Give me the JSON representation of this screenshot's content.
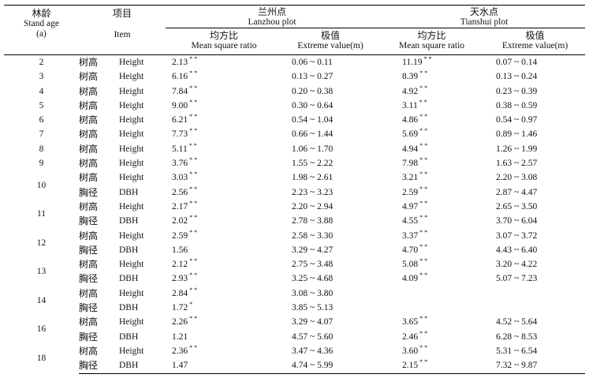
{
  "header": {
    "age_cn": "林龄",
    "age_en": "Stand age",
    "age_unit": "(a)",
    "item_cn": "项目",
    "item_en": "Item",
    "lanzhou_cn": "兰州点",
    "lanzhou_en": "Lanzhou plot",
    "tianshui_cn": "天水点",
    "tianshui_en": "Tianshui plot",
    "ratio_cn": "均方比",
    "ratio_en": "Mean square ratio",
    "extreme_cn": "极值",
    "extreme_en": "Extreme value(m)"
  },
  "groups": [
    {
      "age": "2",
      "rows": [
        {
          "item_cn": "树高",
          "item_en": "Height",
          "lz_ratio": "2.13",
          "lz_sig": "**",
          "lz_ext": "0.06 ~ 0.11",
          "ts_ratio": "11.19",
          "ts_sig": "**",
          "ts_ext": "0.07 ~ 0.14"
        }
      ]
    },
    {
      "age": "3",
      "rows": [
        {
          "item_cn": "树高",
          "item_en": "Height",
          "lz_ratio": "6.16",
          "lz_sig": "**",
          "lz_ext": "0.13 ~ 0.27",
          "ts_ratio": "8.39",
          "ts_sig": "**",
          "ts_ext": "0.13 ~ 0.24"
        }
      ]
    },
    {
      "age": "4",
      "rows": [
        {
          "item_cn": "树高",
          "item_en": "Height",
          "lz_ratio": "7.84",
          "lz_sig": "**",
          "lz_ext": "0.20 ~ 0.38",
          "ts_ratio": "4.92",
          "ts_sig": "**",
          "ts_ext": "0.23 ~ 0.39"
        }
      ]
    },
    {
      "age": "5",
      "rows": [
        {
          "item_cn": "树高",
          "item_en": "Height",
          "lz_ratio": "9.00",
          "lz_sig": "**",
          "lz_ext": "0.30 ~ 0.64",
          "ts_ratio": "3.11",
          "ts_sig": "**",
          "ts_ext": "0.38 ~ 0.59"
        }
      ]
    },
    {
      "age": "6",
      "rows": [
        {
          "item_cn": "树高",
          "item_en": "Height",
          "lz_ratio": "6.21",
          "lz_sig": "**",
          "lz_ext": "0.54 ~ 1.04",
          "ts_ratio": "4.86",
          "ts_sig": "**",
          "ts_ext": "0.54 ~ 0.97"
        }
      ]
    },
    {
      "age": "7",
      "rows": [
        {
          "item_cn": "树高",
          "item_en": "Height",
          "lz_ratio": "7.73",
          "lz_sig": "**",
          "lz_ext": "0.66 ~ 1.44",
          "ts_ratio": "5.69",
          "ts_sig": "**",
          "ts_ext": "0.89 ~ 1.46"
        }
      ]
    },
    {
      "age": "8",
      "rows": [
        {
          "item_cn": "树高",
          "item_en": "Height",
          "lz_ratio": "5.11",
          "lz_sig": "**",
          "lz_ext": "1.06 ~ 1.70",
          "ts_ratio": "4.94",
          "ts_sig": "**",
          "ts_ext": "1.26 ~ 1.99"
        }
      ]
    },
    {
      "age": "9",
      "rows": [
        {
          "item_cn": "树高",
          "item_en": "Height",
          "lz_ratio": "3.76",
          "lz_sig": "**",
          "lz_ext": "1.55 ~ 2.22",
          "ts_ratio": "7.98",
          "ts_sig": "**",
          "ts_ext": "1.63 ~ 2.57"
        }
      ]
    },
    {
      "age": "10",
      "rows": [
        {
          "item_cn": "树高",
          "item_en": "Height",
          "lz_ratio": "3.03",
          "lz_sig": "**",
          "lz_ext": "1.98 ~ 2.61",
          "ts_ratio": "3.21",
          "ts_sig": "**",
          "ts_ext": "2.20 ~ 3.08"
        },
        {
          "item_cn": "胸径",
          "item_en": "DBH",
          "lz_ratio": "2.56",
          "lz_sig": "**",
          "lz_ext": "2.23 ~ 3.23",
          "ts_ratio": "2.59",
          "ts_sig": "**",
          "ts_ext": "2.87 ~ 4.47"
        }
      ]
    },
    {
      "age": "11",
      "rows": [
        {
          "item_cn": "树高",
          "item_en": "Height",
          "lz_ratio": "2.17",
          "lz_sig": "**",
          "lz_ext": "2.20 ~ 2.94",
          "ts_ratio": "4.97",
          "ts_sig": "**",
          "ts_ext": "2.65 ~ 3.50"
        },
        {
          "item_cn": "胸径",
          "item_en": "DBH",
          "lz_ratio": "2.02",
          "lz_sig": "**",
          "lz_ext": "2.78 ~ 3.88",
          "ts_ratio": "4.55",
          "ts_sig": "**",
          "ts_ext": "3.70 ~ 6.04"
        }
      ]
    },
    {
      "age": "12",
      "rows": [
        {
          "item_cn": "树高",
          "item_en": "Height",
          "lz_ratio": "2.59",
          "lz_sig": "**",
          "lz_ext": "2.58 ~ 3.30",
          "ts_ratio": "3.37",
          "ts_sig": "**",
          "ts_ext": "3.07 ~ 3.72"
        },
        {
          "item_cn": "胸径",
          "item_en": "DBH",
          "lz_ratio": "1.56",
          "lz_ext": "3.29 ~ 4.27",
          "ts_ratio": "4.70",
          "ts_sig": "**",
          "ts_ext": "4.43 ~ 6.40"
        }
      ]
    },
    {
      "age": "13",
      "rows": [
        {
          "item_cn": "树高",
          "item_en": "Height",
          "lz_ratio": "2.12",
          "lz_sig": "**",
          "lz_ext": "2.75 ~ 3.48",
          "ts_ratio": "5.08",
          "ts_sig": "**",
          "ts_ext": "3.20 ~ 4.22"
        },
        {
          "item_cn": "胸径",
          "item_en": "DBH",
          "lz_ratio": "2.93",
          "lz_sig": "**",
          "lz_ext": "3.25 ~ 4.68",
          "ts_ratio": "4.09",
          "ts_sig": "**",
          "ts_ext": "5.07 ~ 7.23"
        }
      ]
    },
    {
      "age": "14",
      "rows": [
        {
          "item_cn": "树高",
          "item_en": "Height",
          "lz_ratio": "2.84",
          "lz_sig": "**",
          "lz_ext": "3.08 ~ 3.80"
        },
        {
          "item_cn": "胸径",
          "item_en": "DBH",
          "lz_ratio": "1.72",
          "lz_sig": "*",
          "lz_ext": "3.85 ~ 5.13"
        }
      ]
    },
    {
      "age": "16",
      "rows": [
        {
          "item_cn": "树高",
          "item_en": "Height",
          "lz_ratio": "2.26",
          "lz_sig": "**",
          "lz_ext": "3.29 ~ 4.07",
          "ts_ratio": "3.65",
          "ts_sig": "**",
          "ts_ext": "4.52 ~ 5.64"
        },
        {
          "item_cn": "胸径",
          "item_en": "DBH",
          "lz_ratio": "1.21",
          "lz_ext": "4.57 ~ 5.60",
          "ts_ratio": "2.46",
          "ts_sig": "**",
          "ts_ext": "6.28 ~ 8.53"
        }
      ]
    },
    {
      "age": "18",
      "rows": [
        {
          "item_cn": "树高",
          "item_en": "Height",
          "lz_ratio": "2.36",
          "lz_sig": "**",
          "lz_ext": "3.47 ~ 4.36",
          "ts_ratio": "3.60",
          "ts_sig": "**",
          "ts_ext": "5.31 ~ 6.54"
        },
        {
          "item_cn": "胸径",
          "item_en": "DBH",
          "lz_ratio": "1.47",
          "lz_ext": "4.74 ~ 5.99",
          "ts_ratio": "2.15",
          "ts_sig": "**",
          "ts_ext": "7.32 ~ 9.87"
        }
      ]
    }
  ]
}
